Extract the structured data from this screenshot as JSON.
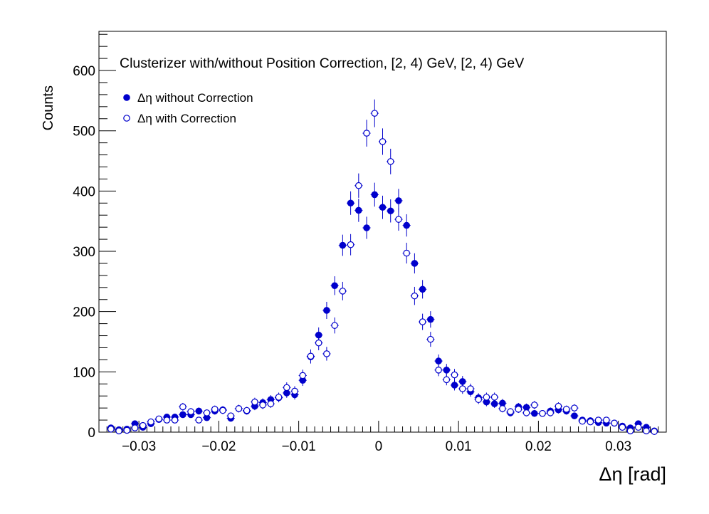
{
  "chart_data": {
    "type": "scatter",
    "title": "Clusterizer with/without Position Correction, [2, 4) GeV, [2, 4) GeV",
    "xlabel": "Δη  [rad]",
    "ylabel": "Counts",
    "xlim": [
      -0.035,
      0.036
    ],
    "ylim": [
      0,
      665
    ],
    "x_ticks": [
      -0.03,
      -0.02,
      -0.01,
      0,
      0.01,
      0.02,
      0.03
    ],
    "x_tick_labels": [
      "−0.03",
      "−0.02",
      "−0.01",
      "0",
      "0.01",
      "0.02",
      "0.03"
    ],
    "y_ticks": [
      0,
      100,
      200,
      300,
      400,
      500,
      600
    ],
    "y_tick_labels": [
      "0",
      "100",
      "200",
      "300",
      "400",
      "500",
      "600"
    ],
    "legend_position": "top-left",
    "series": [
      {
        "name": "Δη without Correction",
        "marker": "filled-circle",
        "color": "#0000cc",
        "x": [
          -0.0335,
          -0.0325,
          -0.0315,
          -0.0305,
          -0.0295,
          -0.0285,
          -0.0275,
          -0.0265,
          -0.0255,
          -0.0245,
          -0.0235,
          -0.0225,
          -0.0215,
          -0.0205,
          -0.0195,
          -0.0185,
          -0.0175,
          -0.0165,
          -0.0155,
          -0.0145,
          -0.0135,
          -0.0125,
          -0.0115,
          -0.0105,
          -0.0095,
          -0.0085,
          -0.0075,
          -0.0065,
          -0.0055,
          -0.0045,
          -0.0035,
          -0.0025,
          -0.0015,
          -0.0005,
          0.0005,
          0.0015,
          0.0025,
          0.0035,
          0.0045,
          0.0055,
          0.0065,
          0.0075,
          0.0085,
          0.0095,
          0.0105,
          0.0115,
          0.0125,
          0.0135,
          0.0145,
          0.0155,
          0.0165,
          0.0175,
          0.0185,
          0.0195,
          0.0205,
          0.0215,
          0.0225,
          0.0235,
          0.0245,
          0.0255,
          0.0265,
          0.0275,
          0.0285,
          0.0295,
          0.0305,
          0.0315,
          0.0325,
          0.0335,
          0.0345
        ],
        "y": [
          7,
          4,
          5,
          14,
          8,
          14,
          21,
          25,
          25,
          29,
          29,
          35,
          24,
          35,
          37,
          23,
          39,
          35,
          43,
          49,
          54,
          57,
          65,
          62,
          86,
          125,
          161,
          202,
          243,
          310,
          380,
          368,
          339,
          394,
          373,
          367,
          384,
          343,
          280,
          237,
          187,
          118,
          103,
          78,
          84,
          67,
          57,
          50,
          47,
          48,
          32,
          42,
          41,
          31,
          31,
          35,
          37,
          35,
          27,
          20,
          19,
          16,
          15,
          15,
          10,
          7,
          14,
          8,
          2
        ]
      },
      {
        "name": "Δη with Correction",
        "marker": "open-circle",
        "color": "#0000cc",
        "x": [
          -0.0335,
          -0.0325,
          -0.0315,
          -0.0305,
          -0.0295,
          -0.0285,
          -0.0275,
          -0.0265,
          -0.0255,
          -0.0245,
          -0.0235,
          -0.0225,
          -0.0215,
          -0.0205,
          -0.0195,
          -0.0185,
          -0.0175,
          -0.0165,
          -0.0155,
          -0.0145,
          -0.0135,
          -0.0125,
          -0.0115,
          -0.0105,
          -0.0095,
          -0.0085,
          -0.0075,
          -0.0065,
          -0.0055,
          -0.0045,
          -0.0035,
          -0.0025,
          -0.0015,
          -0.0005,
          0.0005,
          0.0015,
          0.0025,
          0.0035,
          0.0045,
          0.0055,
          0.0065,
          0.0075,
          0.0085,
          0.0095,
          0.0105,
          0.0115,
          0.0125,
          0.0135,
          0.0145,
          0.0155,
          0.0165,
          0.0175,
          0.0185,
          0.0195,
          0.0205,
          0.0215,
          0.0225,
          0.0235,
          0.0245,
          0.0255,
          0.0265,
          0.0275,
          0.0285,
          0.0295,
          0.0305,
          0.0315,
          0.0325,
          0.0335,
          0.0345
        ],
        "y": [
          5,
          2,
          3,
          7,
          11,
          17,
          22,
          20,
          20,
          42,
          34,
          20,
          32,
          38,
          36,
          27,
          39,
          36,
          50,
          45,
          47,
          58,
          74,
          68,
          94,
          126,
          148,
          130,
          177,
          234,
          311,
          409,
          496,
          529,
          482,
          449,
          353,
          297,
          226,
          183,
          154,
          103,
          87,
          95,
          72,
          72,
          54,
          58,
          58,
          39,
          34,
          38,
          32,
          45,
          31,
          32,
          43,
          38,
          40,
          18,
          17,
          20,
          20,
          15,
          8,
          2,
          8,
          2,
          1
        ]
      }
    ]
  }
}
